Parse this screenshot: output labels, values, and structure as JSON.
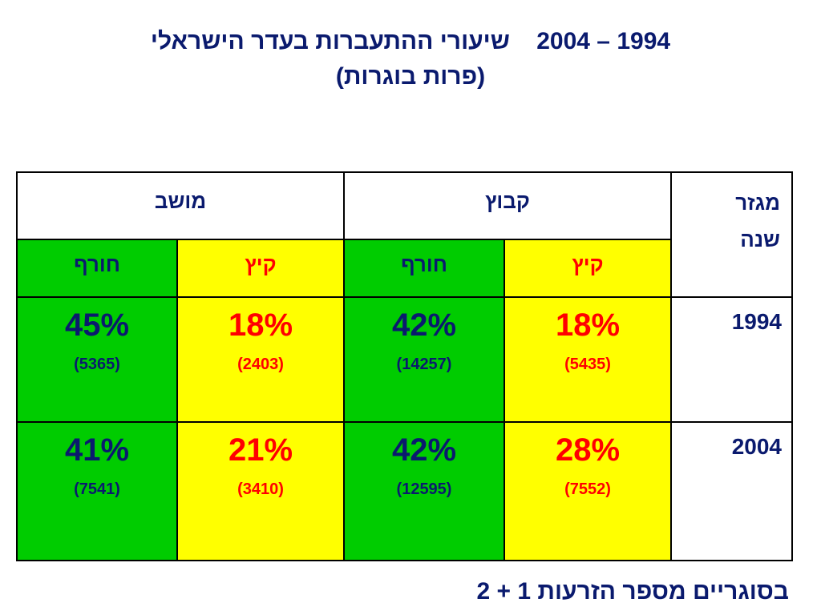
{
  "title": {
    "line1_text": "שיעורי ההתעברות בעדר הישראלי",
    "line1_years": "2004 – 1994",
    "line2": "(פרות בוגרות)"
  },
  "table": {
    "header_sector": "מגזר",
    "header_year": "שנה",
    "groups": [
      "קבוץ",
      "מושב"
    ],
    "seasons": {
      "summer": "קיץ",
      "winter": "חורף"
    },
    "rows": [
      {
        "year": "1994",
        "kibbutz_summer": {
          "pct": "18%",
          "count": "(5435)"
        },
        "kibbutz_winter": {
          "pct": "42%",
          "count": "(14257)"
        },
        "moshav_summer": {
          "pct": "18%",
          "count": "(2403)"
        },
        "moshav_winter": {
          "pct": "45%",
          "count": "(5365)"
        }
      },
      {
        "year": "2004",
        "kibbutz_summer": {
          "pct": "28%",
          "count": "(7552)"
        },
        "kibbutz_winter": {
          "pct": "42%",
          "count": "(12595)"
        },
        "moshav_summer": {
          "pct": "21%",
          "count": "(3410)"
        },
        "moshav_winter": {
          "pct": "41%",
          "count": "(7541)"
        }
      }
    ]
  },
  "footer": "בסוגריים מספר הזרעות 1 + 2",
  "colors": {
    "navy_text": "#0a1a6e",
    "summer_fill": "#ffff00",
    "winter_fill": "#00cc00",
    "summer_text": "#ff0000"
  }
}
